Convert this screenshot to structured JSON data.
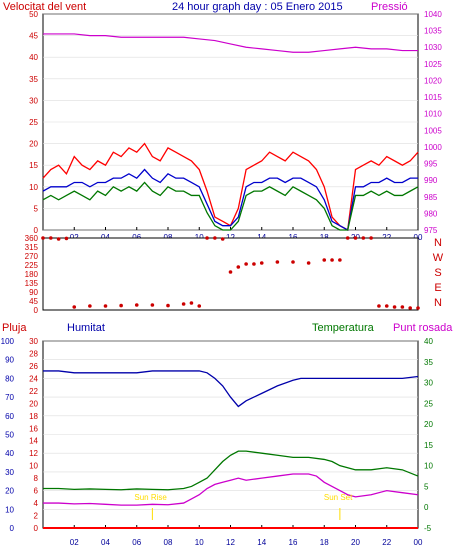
{
  "header": {
    "wind_label": "Velocitat del vent",
    "title": "24 hour graph day : 05 Enero 2015",
    "pressure_label": "Pressió"
  },
  "legend2": {
    "rain_label": "Pluja",
    "humidity_label": "Humitat",
    "temperature_label": "Temperatura",
    "dewpoint_label": "Punt rosada",
    "sunrise_label": "Sun Rise",
    "sunset_label": "Sun Set"
  },
  "colors": {
    "wind_max": "#ff0000",
    "wind_avg": "#0000cc",
    "wind_gust": "#007700",
    "pressure": "#cc00cc",
    "humidity": "#0000aa",
    "temperature": "#007700",
    "dewpoint": "#cc00cc",
    "rain": "#ff0000",
    "sun": "#ffdd00",
    "left_axis_red": "#cc0000",
    "compass": "#cc0000"
  },
  "chart_data": [
    {
      "type": "line",
      "name": "wind_pressure",
      "x_ticks": [
        "02",
        "04",
        "06",
        "08",
        "10",
        "12",
        "14",
        "16",
        "18",
        "20",
        "22",
        "00"
      ],
      "xlim": [
        0,
        24
      ],
      "ylim_left": [
        0,
        50
      ],
      "y_ticks_left": [
        0,
        5,
        10,
        15,
        20,
        25,
        30,
        35,
        40,
        45,
        50
      ],
      "ylim_right": [
        975,
        1040
      ],
      "y_ticks_right": [
        975,
        980,
        985,
        990,
        995,
        1000,
        1005,
        1010,
        1015,
        1020,
        1025,
        1030,
        1035,
        1040
      ],
      "series": [
        {
          "key": "max",
          "x": [
            0,
            0.5,
            1,
            1.5,
            2,
            2.5,
            3,
            3.5,
            4,
            4.5,
            5,
            5.5,
            6,
            6.5,
            7,
            7.5,
            8,
            8.5,
            9,
            9.5,
            10,
            10.5,
            11,
            11.5,
            12,
            12.5,
            13,
            13.5,
            14,
            14.5,
            15,
            15.5,
            16,
            16.5,
            17,
            17.5,
            18,
            18.5,
            19,
            19.5,
            20,
            20.5,
            21,
            21.5,
            22,
            22.5,
            23,
            23.5,
            24
          ],
          "values": [
            12,
            14,
            15,
            13,
            17,
            15,
            14,
            16,
            15,
            18,
            17,
            19,
            18,
            20,
            17,
            16,
            19,
            18,
            17,
            16,
            14,
            9,
            3,
            2,
            1,
            5,
            14,
            15,
            16,
            18,
            17,
            16,
            18,
            17,
            16,
            14,
            10,
            3,
            1,
            0,
            14,
            15,
            16,
            15,
            17,
            16,
            15,
            16,
            18
          ]
        },
        {
          "key": "avg",
          "x": [
            0,
            0.5,
            1,
            1.5,
            2,
            2.5,
            3,
            3.5,
            4,
            4.5,
            5,
            5.5,
            6,
            6.5,
            7,
            7.5,
            8,
            8.5,
            9,
            9.5,
            10,
            10.5,
            11,
            11.5,
            12,
            12.5,
            13,
            13.5,
            14,
            14.5,
            15,
            15.5,
            16,
            16.5,
            17,
            17.5,
            18,
            18.5,
            19,
            19.5,
            20,
            20.5,
            21,
            21.5,
            22,
            22.5,
            23,
            23.5,
            24
          ],
          "values": [
            9,
            10,
            10,
            10,
            11,
            11,
            10,
            11,
            11,
            12,
            12,
            13,
            12,
            14,
            12,
            11,
            13,
            12,
            12,
            11,
            10,
            6,
            2,
            1,
            1,
            3,
            10,
            11,
            11,
            12,
            12,
            11,
            12,
            12,
            11,
            10,
            7,
            2,
            1,
            0,
            10,
            10,
            11,
            11,
            12,
            11,
            11,
            12,
            12
          ]
        },
        {
          "key": "gust",
          "x": [
            0,
            0.5,
            1,
            1.5,
            2,
            2.5,
            3,
            3.5,
            4,
            4.5,
            5,
            5.5,
            6,
            6.5,
            7,
            7.5,
            8,
            8.5,
            9,
            9.5,
            10,
            10.5,
            11,
            11.5,
            12,
            12.5,
            13,
            13.5,
            14,
            14.5,
            15,
            15.5,
            16,
            16.5,
            17,
            17.5,
            18,
            18.5,
            19,
            19.5,
            20,
            20.5,
            21,
            21.5,
            22,
            22.5,
            23,
            23.5,
            24
          ],
          "values": [
            7,
            8,
            7,
            8,
            9,
            8,
            7,
            9,
            8,
            10,
            9,
            10,
            9,
            11,
            9,
            8,
            10,
            9,
            9,
            8,
            8,
            4,
            1,
            0,
            0,
            2,
            8,
            9,
            9,
            10,
            9,
            8,
            10,
            9,
            8,
            7,
            5,
            1,
            0,
            0,
            8,
            8,
            9,
            8,
            9,
            8,
            8,
            9,
            10
          ]
        },
        {
          "key": "pressure",
          "x": [
            0,
            1,
            2,
            3,
            4,
            5,
            6,
            7,
            8,
            9,
            10,
            11,
            12,
            13,
            14,
            15,
            16,
            17,
            18,
            19,
            20,
            21,
            22,
            23,
            24
          ],
          "values": [
            1034,
            1034,
            1034,
            1033.5,
            1033.5,
            1033,
            1033,
            1033,
            1033,
            1033,
            1032.5,
            1032,
            1031,
            1030,
            1029.5,
            1029,
            1028.5,
            1028.5,
            1029,
            1029.5,
            1030,
            1029.5,
            1029.5,
            1029,
            1029
          ]
        }
      ]
    },
    {
      "type": "scatter",
      "name": "wind_direction",
      "ylim": [
        0,
        360
      ],
      "y_ticks": [
        0,
        45,
        90,
        135,
        180,
        225,
        270,
        315,
        360
      ],
      "compass": [
        "N",
        "W",
        "S",
        "E",
        "N"
      ],
      "x": [
        0,
        0.5,
        1,
        1.5,
        2,
        3,
        4,
        5,
        6,
        7,
        8,
        9,
        9.5,
        10,
        10.5,
        11,
        11.5,
        12,
        12.5,
        13,
        13.5,
        14,
        15,
        16,
        17,
        18,
        18.5,
        19,
        19.5,
        20,
        20.5,
        21,
        21.5,
        22,
        22.5,
        23,
        23.5,
        24
      ],
      "values": [
        360,
        360,
        355,
        358,
        15,
        20,
        20,
        22,
        25,
        25,
        22,
        30,
        35,
        20,
        360,
        360,
        355,
        190,
        215,
        230,
        230,
        235,
        240,
        240,
        235,
        250,
        250,
        250,
        360,
        360,
        360,
        360,
        20,
        20,
        15,
        15,
        10,
        10
      ]
    },
    {
      "type": "line",
      "name": "humidity_temp",
      "ylim_humidity": [
        0,
        100
      ],
      "y_ticks_humidity": [
        0,
        10,
        20,
        30,
        40,
        50,
        60,
        70,
        80,
        90,
        100
      ],
      "ylim_rain": [
        0,
        30
      ],
      "y_ticks_rain": [
        0,
        2,
        4,
        6,
        8,
        10,
        12,
        14,
        16,
        18,
        20,
        22,
        24,
        26,
        28,
        30
      ],
      "ylim_temp": [
        -5,
        40
      ],
      "y_ticks_temp": [
        -5,
        0,
        5,
        10,
        15,
        20,
        25,
        30,
        35,
        40
      ],
      "sunrise_hour": 7,
      "sunset_hour": 19,
      "series": [
        {
          "key": "humidity",
          "x": [
            0,
            1,
            2,
            3,
            4,
            5,
            6,
            7,
            8,
            9,
            9.5,
            10,
            10.5,
            11,
            11.5,
            12,
            12.5,
            13,
            14,
            15,
            16,
            16.5,
            17,
            18,
            19,
            20,
            21,
            22,
            23,
            24
          ],
          "values": [
            84,
            84,
            83,
            83,
            83,
            83,
            83,
            84,
            84,
            84,
            84,
            84,
            83,
            80,
            76,
            70,
            65,
            68,
            72,
            76,
            79,
            80,
            80,
            80,
            80,
            80,
            80,
            80,
            80,
            81
          ]
        },
        {
          "key": "temperature",
          "x": [
            0,
            1,
            2,
            3,
            4,
            5,
            6,
            7,
            8,
            9,
            9.5,
            10,
            10.5,
            11,
            11.5,
            12,
            12.5,
            13,
            14,
            15,
            16,
            17,
            18,
            18.5,
            19,
            19.5,
            20,
            21,
            22,
            23,
            24
          ],
          "values": [
            4.5,
            4.5,
            4.3,
            4.4,
            4.3,
            4.2,
            4.4,
            4.3,
            4.2,
            4.5,
            5,
            6,
            7,
            9,
            11,
            12.5,
            13.5,
            13.5,
            13,
            12.5,
            12,
            12,
            11.5,
            11,
            10,
            9.5,
            9,
            9,
            9.5,
            9,
            7.5
          ]
        },
        {
          "key": "dewpoint",
          "x": [
            0,
            1,
            2,
            3,
            4,
            5,
            6,
            7,
            8,
            9,
            9.5,
            10,
            10.5,
            11,
            11.5,
            12,
            12.5,
            13,
            14,
            15,
            16,
            17,
            17.5,
            18,
            19,
            19.5,
            20,
            21,
            22,
            23,
            24
          ],
          "values": [
            1,
            1,
            0.8,
            0.9,
            0.7,
            0.5,
            0.5,
            0.7,
            0.6,
            1,
            2,
            3,
            4.5,
            5.5,
            6,
            6.5,
            7,
            6.5,
            7,
            7.5,
            8,
            8,
            7.5,
            6,
            4,
            3,
            2.5,
            3,
            4,
            3.5,
            3
          ]
        },
        {
          "key": "rain",
          "x": [
            0,
            24
          ],
          "values": [
            0,
            0
          ]
        }
      ]
    }
  ]
}
